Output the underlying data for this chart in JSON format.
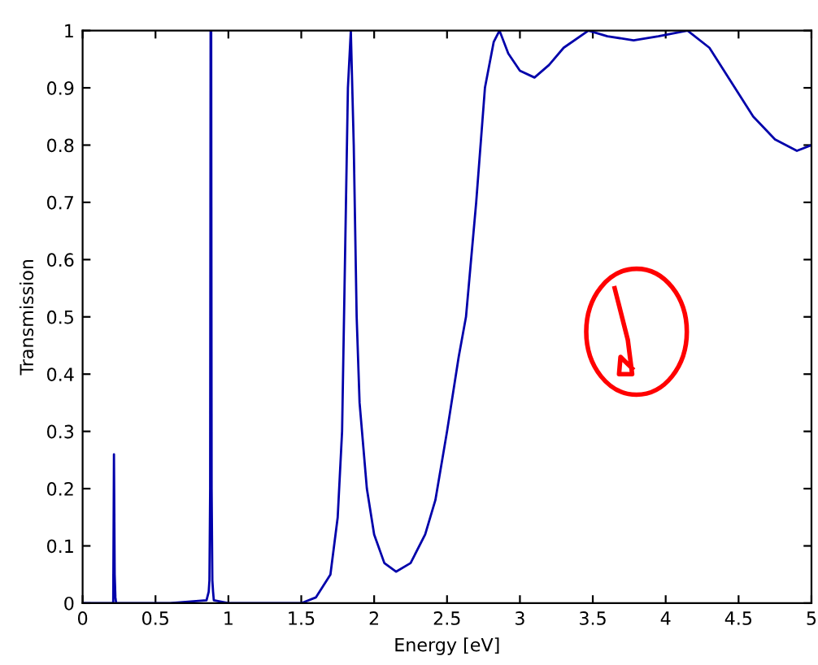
{
  "chart_data": {
    "type": "line",
    "xlabel": "Energy [eV]",
    "ylabel": "Transmission",
    "xlim": [
      0,
      5
    ],
    "ylim": [
      0,
      1
    ],
    "xticks": [
      0,
      0.5,
      1,
      1.5,
      2,
      2.5,
      3,
      3.5,
      4,
      4.5,
      5
    ],
    "yticks": [
      0,
      0.1,
      0.2,
      0.3,
      0.4,
      0.5,
      0.6,
      0.7,
      0.8,
      0.9,
      1
    ],
    "grid": false,
    "legend": false,
    "marker": "none",
    "line_style": "solid",
    "series": [
      {
        "color": "#0000aa",
        "x": [
          0,
          0.21,
          0.215,
          0.22,
          0.225,
          0.23,
          0.3,
          0.6,
          0.85,
          0.865,
          0.87,
          0.875,
          0.878,
          0.88,
          0.882,
          0.885,
          0.89,
          0.895,
          0.9,
          1.0,
          1.3,
          1.5,
          1.6,
          1.7,
          1.75,
          1.78,
          1.8,
          1.82,
          1.84,
          1.86,
          1.88,
          1.9,
          1.95,
          2.0,
          2.07,
          2.15,
          2.25,
          2.35,
          2.42,
          2.5,
          2.58,
          2.63,
          2.7,
          2.76,
          2.82,
          2.86,
          2.92,
          3.0,
          3.1,
          3.2,
          3.3,
          3.47,
          3.6,
          3.78,
          3.95,
          4.15,
          4.3,
          4.45,
          4.6,
          4.75,
          4.9,
          5.0
        ],
        "values": [
          0,
          0,
          0.26,
          0.05,
          0.01,
          0,
          0,
          0,
          0.005,
          0.02,
          0.04,
          0.2,
          1.0,
          0.91,
          1.0,
          0.2,
          0.04,
          0.02,
          0.005,
          0,
          0,
          0,
          0.01,
          0.05,
          0.15,
          0.3,
          0.6,
          0.9,
          1.0,
          0.8,
          0.5,
          0.35,
          0.2,
          0.12,
          0.07,
          0.055,
          0.07,
          0.12,
          0.18,
          0.3,
          0.43,
          0.5,
          0.7,
          0.9,
          0.98,
          1.0,
          0.96,
          0.93,
          0.918,
          0.94,
          0.97,
          1.0,
          0.99,
          0.983,
          0.99,
          1.0,
          0.97,
          0.91,
          0.85,
          0.81,
          0.79,
          0.8
        ]
      }
    ]
  }
}
